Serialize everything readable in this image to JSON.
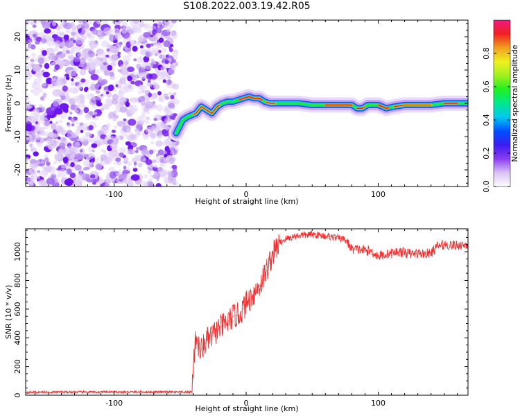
{
  "title": "S108.2022.003.19.42.R05",
  "chart_data": [
    {
      "type": "heatmap",
      "xlabel": "Height of straight line (km)",
      "ylabel": "Frequency (Hz)",
      "xlim": [
        -167,
        168
      ],
      "ylim": [
        -25,
        25
      ],
      "x_ticks": [
        -100,
        0,
        100
      ],
      "x_tick_labels": [
        "-100",
        "0",
        "100"
      ],
      "y_ticks": [
        -20,
        -10,
        0,
        10,
        20
      ],
      "y_tick_labels": [
        "-20",
        "-10",
        "0",
        "10",
        "20"
      ],
      "noise_region_x": [
        -167,
        -53
      ],
      "ridge": {
        "x": [
          -53,
          -48,
          -44,
          -38,
          -34,
          -30,
          -26,
          -22,
          -18,
          -14,
          -10,
          -6,
          -2,
          2,
          6,
          10,
          14,
          18,
          22,
          30,
          40,
          50,
          60,
          70,
          76,
          80,
          84,
          88,
          92,
          100,
          106,
          112,
          120,
          130,
          140,
          150,
          160,
          168
        ],
        "y": [
          -9,
          -5,
          -4,
          -3,
          -1,
          -2,
          -3,
          -1,
          0,
          0.5,
          0.5,
          1,
          1.5,
          2,
          1.5,
          1.5,
          0.5,
          0,
          0,
          0,
          0,
          -0.5,
          -0.5,
          -0.5,
          -0.5,
          -0.5,
          -1.5,
          -1.5,
          -0.5,
          -0.5,
          -1.5,
          -1,
          -0.5,
          -0.5,
          -0.5,
          0,
          0,
          0
        ]
      },
      "colorbar": {
        "label": "Normalized spectral amplitude",
        "range": [
          0,
          1
        ],
        "ticks": [
          0.0,
          0.2,
          0.4,
          0.6,
          0.8
        ],
        "tick_labels": [
          "0.0",
          "0.2",
          "0.4",
          "0.6",
          "0.8"
        ],
        "colors": [
          "#ffffff",
          "#d9c2f5",
          "#8a3cf0",
          "#3c1cf0",
          "#0050ff",
          "#00c8f0",
          "#00e890",
          "#20f020",
          "#a0f020",
          "#f0f020",
          "#f0a020",
          "#f02020",
          "#f01880"
        ]
      }
    },
    {
      "type": "line",
      "xlabel": "Height of straight line (km)",
      "ylabel": "SNR (10 * v/v)",
      "xlim": [
        -167,
        168
      ],
      "ylim": [
        0,
        1160
      ],
      "x_ticks": [
        -100,
        0,
        100
      ],
      "x_tick_labels": [
        "-100",
        "0",
        "100"
      ],
      "y_ticks": [
        0,
        200,
        400,
        600,
        800,
        1000
      ],
      "y_tick_labels": [
        "0",
        "200",
        "400",
        "600",
        "800",
        "1000"
      ],
      "series": [
        {
          "color": "#f03030",
          "x": [
            -167,
            -140,
            -120,
            -100,
            -80,
            -60,
            -45,
            -41,
            -40,
            -38,
            -35,
            -30,
            -25,
            -20,
            -15,
            -10,
            -5,
            0,
            5,
            10,
            15,
            20,
            25,
            30,
            40,
            50,
            60,
            70,
            75,
            80,
            90,
            95,
            100,
            105,
            110,
            115,
            120,
            125,
            130,
            135,
            140,
            145,
            150,
            155,
            160,
            168
          ],
          "y": [
            20,
            22,
            22,
            22,
            22,
            22,
            20,
            25,
            220,
            420,
            300,
            380,
            420,
            470,
            500,
            550,
            560,
            640,
            700,
            760,
            860,
            980,
            1060,
            1090,
            1115,
            1120,
            1110,
            1095,
            1085,
            1020,
            1010,
            1000,
            970,
            980,
            990,
            1000,
            995,
            985,
            990,
            985,
            990,
            1040,
            1050,
            1045,
            1045,
            1050
          ]
        }
      ]
    }
  ]
}
